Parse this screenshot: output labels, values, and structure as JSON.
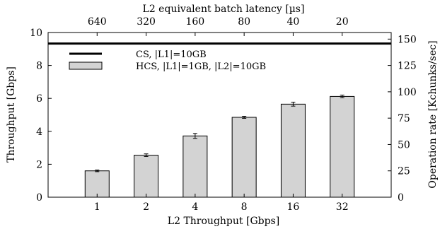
{
  "chart_data": {
    "type": "bar",
    "x_bottom_label": "L2 Throughput [Gbps]",
    "x_top_label": "L2 equivalent batch latency [µs]",
    "y_left_label": "Throughput [Gbps]",
    "y_right_label": "Operation rate [Kchunks/sec]",
    "categories": [
      "1",
      "2",
      "4",
      "8",
      "16",
      "32"
    ],
    "top_tick_labels": [
      "640",
      "320",
      "160",
      "80",
      "40",
      "20"
    ],
    "y_left_ticks": [
      "0",
      "2",
      "4",
      "6",
      "8",
      "10"
    ],
    "y_right_ticks": [
      "0",
      "25",
      "50",
      "75",
      "100",
      "125",
      "150"
    ],
    "ylim_left": [
      0,
      10
    ],
    "ylim_right": [
      0,
      156.25
    ],
    "series": [
      {
        "name": "HCS, |L1|=1GB, |L2|=10GB",
        "kind": "bar",
        "values": [
          1.6,
          2.55,
          3.72,
          4.85,
          5.65,
          6.12
        ],
        "errors": [
          0.05,
          0.08,
          0.15,
          0.06,
          0.12,
          0.08
        ],
        "color": "#d3d3d3"
      },
      {
        "name": "CS, |L1|=10GB",
        "kind": "hline",
        "value": 9.33,
        "color": "#000000"
      }
    ],
    "legend": {
      "position": "top-left",
      "entries": [
        "CS, |L1|=10GB",
        "HCS, |L1|=1GB, |L2|=10GB"
      ]
    },
    "grid": false
  }
}
